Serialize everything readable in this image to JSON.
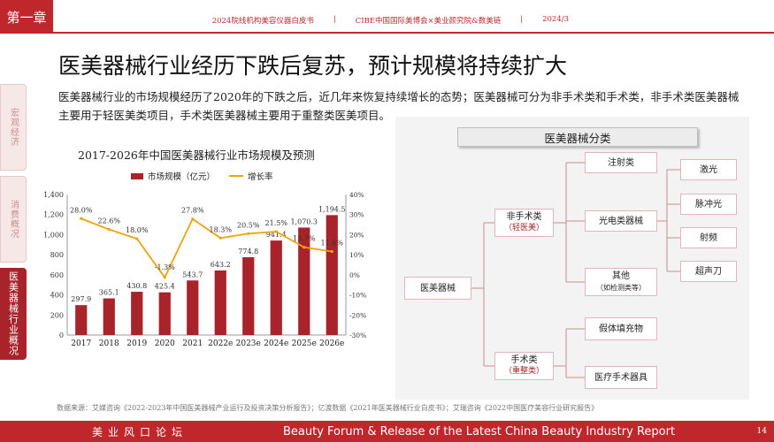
{
  "header": {
    "chapter": "第一章",
    "info": [
      "2024院线机构美容仪器白皮书",
      "CIBE中国国际美博会×美业颜究院&数美链",
      "2024/3"
    ]
  },
  "side_tabs": [
    "宏观经济",
    "消费概况",
    "医美器械行业概况"
  ],
  "page": {
    "title": "医美器械行业经历下跌后复苏，预计规模将持续扩大",
    "intro": "医美器械行业的市场规模经历了2020年的下跌之后，近几年来恢复持续增长的态势；医美器械可分为非手术类和手术类，非手术类医美器械主要用于轻医美类项目，手术类医美器械主要用于重整类医美项目。"
  },
  "chart_data": {
    "type": "bar",
    "title": "2017-2026年中国医美器械行业市场规模及预测",
    "categories": [
      "2017",
      "2018",
      "2019",
      "2020",
      "2021",
      "2022e",
      "2023e",
      "2024e",
      "2025e",
      "2026e"
    ],
    "series": [
      {
        "name": "市场规模（亿元）",
        "type": "bar",
        "axis": "left",
        "values": [
          297.9,
          365.1,
          430.8,
          425.4,
          543.7,
          643.2,
          774.8,
          941.4,
          1070.3,
          1194.5
        ],
        "labels": [
          "297.9",
          "365.1",
          "430.8",
          "425.4",
          "543.7",
          "643.2",
          "774.8",
          "941.4",
          "1,070.3",
          "1,194.5"
        ]
      },
      {
        "name": "增长率",
        "type": "line",
        "axis": "right",
        "values": [
          28.0,
          22.6,
          18.0,
          -1.3,
          27.8,
          18.3,
          20.5,
          21.5,
          13.7,
          11.6
        ],
        "labels": [
          "28.0%",
          "22.6%",
          "18.0%",
          "-1.3%",
          "27.8%",
          "18.3%",
          "20.5%",
          "21.5%",
          "13.7%",
          "11.6%"
        ]
      }
    ],
    "left_axis": {
      "ylim": [
        0,
        1400
      ],
      "ticks": [
        "0",
        "200",
        "400",
        "600",
        "800",
        "1,000",
        "1,200",
        "1,400"
      ]
    },
    "right_axis": {
      "ylim": [
        -30,
        40
      ],
      "ticks": [
        "-30%",
        "-20%",
        "-10%",
        "0%",
        "10%",
        "20%",
        "30%",
        "40%"
      ]
    },
    "colors": {
      "bar": "#a8242a",
      "line": "#f0a30a"
    },
    "legend_position": "top",
    "grid": false
  },
  "diagram": {
    "title": "医美器械分类",
    "root": "医美器械",
    "non_surgical": {
      "label": "非手术类",
      "sub": "（轻医美）"
    },
    "surgical": {
      "label": "手术类",
      "sub": "（重整类）"
    },
    "injection": "注射类",
    "photoelectric": "光电类器械",
    "other": {
      "label": "其他",
      "sub": "（如检测类等）"
    },
    "laser_items": [
      "激光",
      "脉冲光",
      "射频",
      "超声刀"
    ],
    "surgical_items": [
      "假体填充物",
      "医疗手术器具"
    ],
    "colors": {
      "line": "#c98c8f",
      "node_border": "#e0b7b9",
      "sub_text": "#a8242a"
    }
  },
  "source": "数据来源：艾媒咨询《2022-2023年中国医美器械产业运行及投资决策分析报告》；亿渡数据《2021年医美器械行业白皮书》；艾瑞咨询《2022中国医疗美容行业研究报告》",
  "footer": {
    "left": "美业风口论坛",
    "right": "Beauty Forum & Release of the Latest China Beauty Industry Report",
    "page": "14"
  }
}
